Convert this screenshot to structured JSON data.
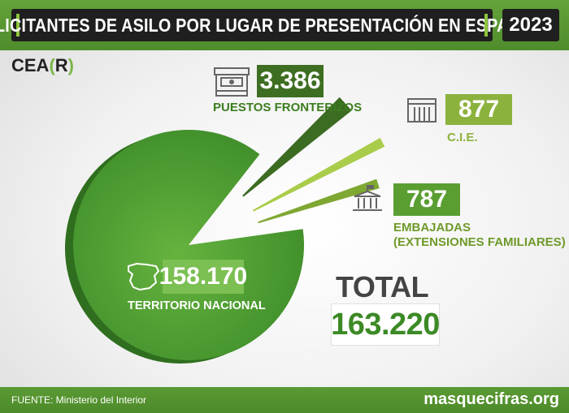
{
  "header": {
    "title": "SOLICITANTES DE ASILO POR LUGAR DE PRESENTACIÓN EN ESPAÑA",
    "year": "2023"
  },
  "logo": {
    "prefix": "CEA",
    "open": "(",
    "letter": "R",
    "close": ")"
  },
  "chart_data": {
    "type": "pie",
    "title": "SOLICITANTES DE ASILO POR LUGAR DE PRESENTACIÓN EN ESPAÑA",
    "categories": [
      "TERRITORIO NACIONAL",
      "PUESTOS FRONTERIZOS",
      "C.I.E.",
      "EMBAJADAS (EXTENSIONES FAMILIARES)"
    ],
    "values": [
      158170,
      3386,
      877,
      787
    ],
    "value_labels": [
      "158.170",
      "3.386",
      "877",
      "787"
    ],
    "colors": [
      "#55a23a",
      "#3c6b22",
      "#aacc4b",
      "#7ea832"
    ]
  },
  "labels": {
    "territorio": {
      "value": "158.170",
      "caption": "TERRITORIO NACIONAL"
    },
    "puestos": {
      "value": "3.386",
      "caption": "PUESTOS FRONTERIZOS"
    },
    "cie": {
      "value": "877",
      "caption": "C.I.E."
    },
    "embajadas": {
      "value": "787",
      "caption_line1": "EMBAJADAS",
      "caption_line2": "(EXTENSIONES FAMILIARES)"
    }
  },
  "total": {
    "label": "TOTAL",
    "value": "163.220"
  },
  "footer": {
    "source": "FUENTE: Ministerio del Interior",
    "site": "masquecifras.org"
  },
  "icons": [
    "border-post-icon",
    "detention-center-icon",
    "embassy-icon",
    "spain-map-icon"
  ]
}
